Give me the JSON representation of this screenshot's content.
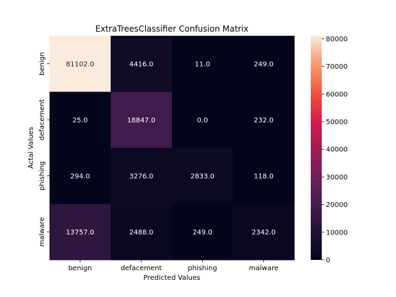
{
  "chart_data": {
    "type": "heatmap",
    "title": "ExtraTreesClassifier Confusion Matrix",
    "xlabel": "Predicted Values",
    "ylabel": "Actal Values",
    "x_categories": [
      "benign",
      "defacement",
      "phishing",
      "malware"
    ],
    "y_categories": [
      "benign",
      "defacement",
      "phishing",
      "malware"
    ],
    "values": [
      [
        81102.0,
        4416.0,
        11.0,
        249.0
      ],
      [
        25.0,
        18847.0,
        0.0,
        232.0
      ],
      [
        294.0,
        3276.0,
        2833.0,
        118.0
      ],
      [
        13757.0,
        2488.0,
        249.0,
        2342.0
      ]
    ],
    "cell_labels": [
      [
        "81102.0",
        "4416.0",
        "11.0",
        "249.0"
      ],
      [
        "25.0",
        "18847.0",
        "0.0",
        "232.0"
      ],
      [
        "294.0",
        "3276.0",
        "2833.0",
        "118.0"
      ],
      [
        "13757.0",
        "2488.0",
        "249.0",
        "2342.0"
      ]
    ],
    "colormap": "rocket",
    "colorbar": {
      "range": [
        0,
        81102
      ],
      "ticks": [
        0,
        10000,
        20000,
        30000,
        40000,
        50000,
        60000,
        70000,
        80000
      ]
    },
    "legend": "colorbar-right",
    "grid": false
  }
}
